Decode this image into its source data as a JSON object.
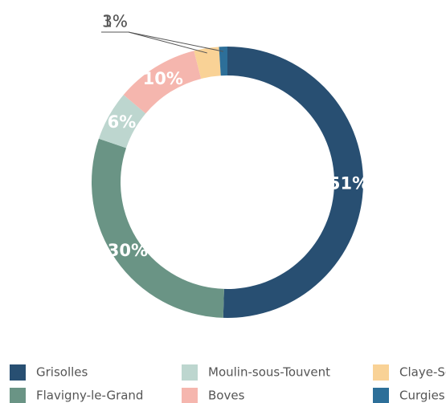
{
  "chart_data": {
    "type": "donut",
    "categories": [
      "Grisolles",
      "Flavigny-le-Grand",
      "Moulin-sous-Touvent",
      "Boves",
      "Claye-Souilly",
      "Curgies"
    ],
    "values": [
      51,
      30,
      6,
      10,
      3,
      1
    ],
    "value_labels": [
      "51%",
      "30%",
      "6%",
      "10%",
      "3%",
      "1%"
    ],
    "colors": [
      "#284f72",
      "#6a9485",
      "#bdd6cf",
      "#f5b6ae",
      "#f9d296",
      "#2d6f99"
    ],
    "outside_labels": [
      4,
      5
    ],
    "legend": "bottom"
  }
}
